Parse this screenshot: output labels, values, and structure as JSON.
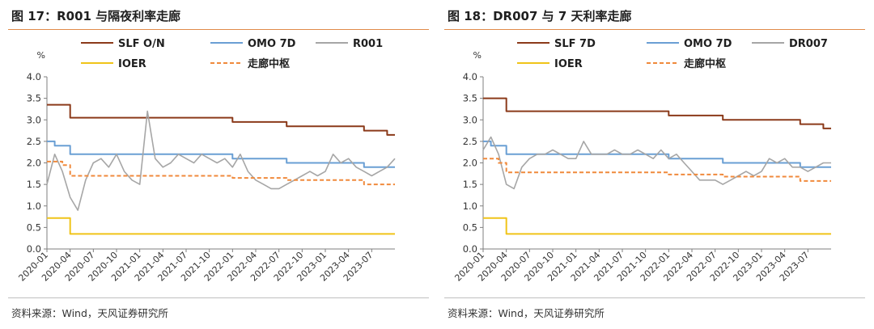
{
  "figures": [
    {
      "title": "图 17：R001 与隔夜利率走廊",
      "source": "资料来源：Wind，天风证券研究所"
    },
    {
      "title": "图 18：DR007 与 7 天利率走廊",
      "source": "资料来源：Wind，天风证券研究所"
    }
  ],
  "chart_data": [
    {
      "type": "line",
      "title": "图 17：R001 与隔夜利率走廊",
      "ylabel": "%",
      "ylim": [
        0,
        4
      ],
      "yticks": [
        "0.0",
        "0.5",
        "1.0",
        "1.5",
        "2.0",
        "2.5",
        "3.0",
        "3.5",
        "4.0"
      ],
      "x_range": [
        "2020-01",
        "2023-10"
      ],
      "xticks": [
        "2020-01",
        "2020-04",
        "2020-07",
        "2020-10",
        "2021-01",
        "2021-04",
        "2021-07",
        "2021-10",
        "2022-01",
        "2022-04",
        "2022-07",
        "2022-10",
        "2023-01",
        "2023-04",
        "2023-07"
      ],
      "grid": false,
      "legend": "top",
      "series": [
        {
          "name": "SLF O/N",
          "color": "#8b3a1a",
          "style": "solid",
          "x": [
            "2020-01",
            "2020-04",
            "2020-04",
            "2022-01",
            "2022-01",
            "2022-08",
            "2022-08",
            "2023-06",
            "2023-06",
            "2023-09",
            "2023-09",
            "2023-10"
          ],
          "values": [
            3.35,
            3.35,
            3.05,
            3.05,
            2.95,
            2.95,
            2.85,
            2.85,
            2.75,
            2.75,
            2.65,
            2.65
          ]
        },
        {
          "name": "OMO 7D",
          "color": "#6a9fd4",
          "style": "solid",
          "x": [
            "2020-01",
            "2020-02",
            "2020-02",
            "2020-04",
            "2020-04",
            "2022-01",
            "2022-01",
            "2022-08",
            "2022-08",
            "2023-06",
            "2023-06",
            "2023-10"
          ],
          "values": [
            2.5,
            2.5,
            2.4,
            2.4,
            2.2,
            2.2,
            2.1,
            2.1,
            2.0,
            2.0,
            1.9,
            1.9
          ]
        },
        {
          "name": "R001",
          "color": "#a6a6a6",
          "style": "solid",
          "x": [
            "2020-01",
            "2020-02",
            "2020-03",
            "2020-04",
            "2020-05",
            "2020-06",
            "2020-07",
            "2020-08",
            "2020-09",
            "2020-10",
            "2020-11",
            "2020-12",
            "2021-01",
            "2021-02",
            "2021-03",
            "2021-04",
            "2021-05",
            "2021-06",
            "2021-07",
            "2021-08",
            "2021-09",
            "2021-10",
            "2021-11",
            "2021-12",
            "2022-01",
            "2022-02",
            "2022-03",
            "2022-04",
            "2022-05",
            "2022-06",
            "2022-07",
            "2022-08",
            "2022-09",
            "2022-10",
            "2022-11",
            "2022-12",
            "2023-01",
            "2023-02",
            "2023-03",
            "2023-04",
            "2023-05",
            "2023-06",
            "2023-07",
            "2023-08",
            "2023-09",
            "2023-10"
          ],
          "values": [
            1.5,
            2.2,
            1.8,
            1.2,
            0.9,
            1.6,
            2.0,
            2.1,
            1.9,
            2.2,
            1.8,
            1.6,
            1.5,
            3.2,
            2.1,
            1.9,
            2.0,
            2.2,
            2.1,
            2.0,
            2.2,
            2.1,
            2.0,
            2.1,
            1.9,
            2.2,
            1.8,
            1.6,
            1.5,
            1.4,
            1.4,
            1.5,
            1.6,
            1.7,
            1.8,
            1.7,
            1.8,
            2.2,
            2.0,
            2.1,
            1.9,
            1.8,
            1.7,
            1.8,
            1.9,
            2.1
          ]
        },
        {
          "name": "IOER",
          "color": "#f0c419",
          "style": "solid",
          "x": [
            "2020-01",
            "2020-04",
            "2020-04",
            "2023-10"
          ],
          "values": [
            0.72,
            0.72,
            0.35,
            0.35
          ]
        },
        {
          "name": "走廊中枢",
          "color": "#f08a3c",
          "style": "dashed",
          "x": [
            "2020-01",
            "2020-03",
            "2020-03",
            "2020-04",
            "2020-04",
            "2022-01",
            "2022-01",
            "2022-08",
            "2022-08",
            "2023-06",
            "2023-06",
            "2023-10"
          ],
          "values": [
            2.03,
            2.03,
            1.95,
            1.95,
            1.7,
            1.7,
            1.65,
            1.65,
            1.6,
            1.6,
            1.5,
            1.5
          ]
        }
      ]
    },
    {
      "type": "line",
      "title": "图 18：DR007 与 7 天利率走廊",
      "ylabel": "%",
      "ylim": [
        0,
        4
      ],
      "yticks": [
        "0.0",
        "0.5",
        "1.0",
        "1.5",
        "2.0",
        "2.5",
        "3.0",
        "3.5",
        "4.0"
      ],
      "x_range": [
        "2020-01",
        "2023-10"
      ],
      "xticks": [
        "2020-01",
        "2020-04",
        "2020-07",
        "2020-10",
        "2021-01",
        "2021-04",
        "2021-07",
        "2021-10",
        "2022-01",
        "2022-04",
        "2022-07",
        "2022-10",
        "2023-01",
        "2023-04",
        "2023-07"
      ],
      "grid": false,
      "legend": "top",
      "series": [
        {
          "name": "SLF 7D",
          "color": "#8b3a1a",
          "style": "solid",
          "x": [
            "2020-01",
            "2020-04",
            "2020-04",
            "2022-01",
            "2022-01",
            "2022-08",
            "2022-08",
            "2023-06",
            "2023-06",
            "2023-09",
            "2023-09",
            "2023-10"
          ],
          "values": [
            3.5,
            3.5,
            3.2,
            3.2,
            3.1,
            3.1,
            3.0,
            3.0,
            2.9,
            2.9,
            2.8,
            2.8
          ]
        },
        {
          "name": "OMO 7D",
          "color": "#6a9fd4",
          "style": "solid",
          "x": [
            "2020-01",
            "2020-02",
            "2020-02",
            "2020-04",
            "2020-04",
            "2022-01",
            "2022-01",
            "2022-08",
            "2022-08",
            "2023-06",
            "2023-06",
            "2023-10"
          ],
          "values": [
            2.5,
            2.5,
            2.4,
            2.4,
            2.2,
            2.2,
            2.1,
            2.1,
            2.0,
            2.0,
            1.9,
            1.9
          ]
        },
        {
          "name": "DR007",
          "color": "#a6a6a6",
          "style": "solid",
          "x": [
            "2020-01",
            "2020-02",
            "2020-03",
            "2020-04",
            "2020-05",
            "2020-06",
            "2020-07",
            "2020-08",
            "2020-09",
            "2020-10",
            "2020-11",
            "2020-12",
            "2021-01",
            "2021-02",
            "2021-03",
            "2021-04",
            "2021-05",
            "2021-06",
            "2021-07",
            "2021-08",
            "2021-09",
            "2021-10",
            "2021-11",
            "2021-12",
            "2022-01",
            "2022-02",
            "2022-03",
            "2022-04",
            "2022-05",
            "2022-06",
            "2022-07",
            "2022-08",
            "2022-09",
            "2022-10",
            "2022-11",
            "2022-12",
            "2023-01",
            "2023-02",
            "2023-03",
            "2023-04",
            "2023-05",
            "2023-06",
            "2023-07",
            "2023-08",
            "2023-09",
            "2023-10"
          ],
          "values": [
            2.3,
            2.6,
            2.2,
            1.5,
            1.4,
            1.9,
            2.1,
            2.2,
            2.2,
            2.3,
            2.2,
            2.1,
            2.1,
            2.5,
            2.2,
            2.2,
            2.2,
            2.3,
            2.2,
            2.2,
            2.3,
            2.2,
            2.1,
            2.3,
            2.1,
            2.2,
            2.0,
            1.8,
            1.6,
            1.6,
            1.6,
            1.5,
            1.6,
            1.7,
            1.8,
            1.7,
            1.8,
            2.1,
            2.0,
            2.1,
            1.9,
            1.9,
            1.8,
            1.9,
            2.0,
            2.0
          ]
        },
        {
          "name": "IOER",
          "color": "#f0c419",
          "style": "solid",
          "x": [
            "2020-01",
            "2020-04",
            "2020-04",
            "2023-10"
          ],
          "values": [
            0.72,
            0.72,
            0.35,
            0.35
          ]
        },
        {
          "name": "走廊中枢",
          "color": "#f08a3c",
          "style": "dashed",
          "x": [
            "2020-01",
            "2020-03",
            "2020-03",
            "2020-04",
            "2020-04",
            "2022-01",
            "2022-01",
            "2022-08",
            "2022-08",
            "2023-06",
            "2023-06",
            "2023-10"
          ],
          "values": [
            2.1,
            2.1,
            2.0,
            2.0,
            1.78,
            1.78,
            1.73,
            1.73,
            1.68,
            1.68,
            1.58,
            1.58
          ]
        }
      ]
    }
  ]
}
